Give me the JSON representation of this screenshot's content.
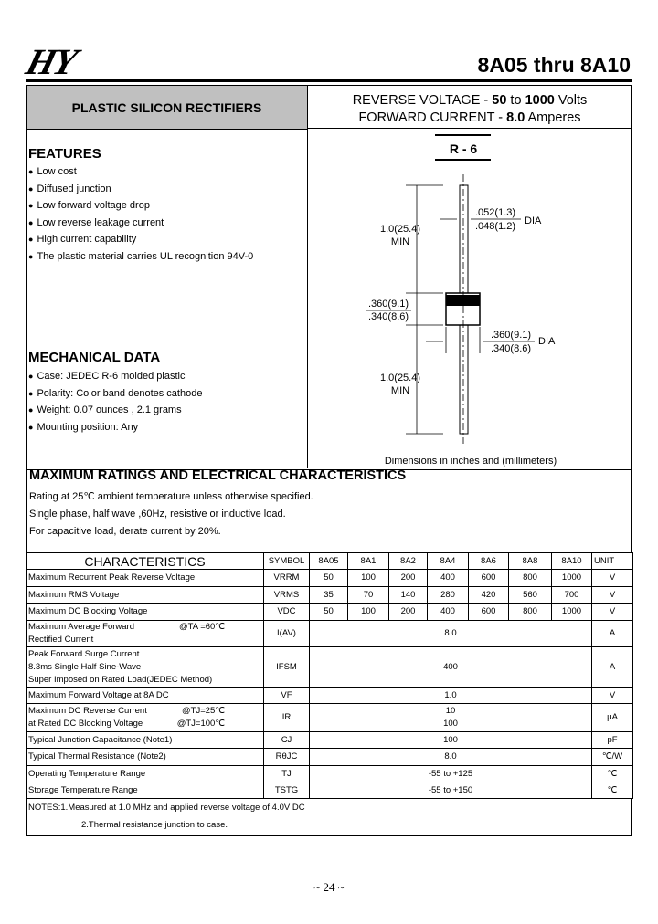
{
  "header": {
    "logo": "HY",
    "title": "8A05 thru 8A10"
  },
  "banner": {
    "left": "PLASTIC SILICON RECTIFIERS",
    "rv_label": "REVERSE VOLTAGE  - ",
    "rv_min": "50",
    "rv_to": " to ",
    "rv_max": "1000",
    "rv_unit": " Volts",
    "fc_label": "FORWARD CURRENT - ",
    "fc_val": "8.0",
    "fc_unit": " Amperes"
  },
  "features": {
    "title": "FEATURES",
    "items": [
      "Low cost",
      "Diffused junction",
      "Low forward voltage drop",
      "Low reverse leakage current",
      "High current capability",
      "The plastic material carries UL recognition 94V-0"
    ]
  },
  "mechanical": {
    "title": "MECHANICAL DATA",
    "items": [
      "Case: JEDEC R-6 molded plastic",
      "Polarity:  Color band denotes cathode",
      "Weight:  0.07 ounces , 2.1 grams",
      "Mounting position: Any"
    ]
  },
  "diagram": {
    "package": "R - 6",
    "lead_len": "1.0(25.4)",
    "min": "MIN",
    "lead_dia_max": ".052(1.3)",
    "lead_dia_min": ".048(1.2)",
    "dia": "DIA",
    "body_len_max": ".360(9.1)",
    "body_len_min": ".340(8.6)",
    "body_dia_max": ".360(9.1)",
    "body_dia_min": ".340(8.6)",
    "caption": "Dimensions in inches and (millimeters)"
  },
  "ratings": {
    "title": "MAXIMUM RATINGS AND ELECTRICAL CHARACTERISTICS",
    "lines": [
      "Rating at 25℃ ambient temperature unless otherwise specified.",
      "Single phase, half wave ,60Hz, resistive or inductive load.",
      "For capacitive load, derate current by 20%."
    ]
  },
  "table": {
    "headers": [
      "CHARACTERISTICS",
      "SYMBOL",
      "8A05",
      "8A1",
      "8A2",
      "8A4",
      "8A6",
      "8A8",
      "8A10",
      "UNIT"
    ],
    "rows": [
      {
        "name": "Maximum Recurrent Peak Reverse Voltage",
        "symbol": "VRRM",
        "values": [
          "50",
          "100",
          "200",
          "400",
          "600",
          "800",
          "1000"
        ],
        "unit": "V"
      },
      {
        "name": "Maximum RMS Voltage",
        "symbol": "VRMS",
        "values": [
          "35",
          "70",
          "140",
          "280",
          "420",
          "560",
          "700"
        ],
        "unit": "V"
      },
      {
        "name": "Maximum DC Blocking Voltage",
        "symbol": "VDC",
        "values": [
          "50",
          "100",
          "200",
          "400",
          "600",
          "800",
          "1000"
        ],
        "unit": "V"
      },
      {
        "name": "Maximum Average Forward",
        "name2": "Rectified Current",
        "cond": "@TA =60℃",
        "symbol": "I(AV)",
        "value": "8.0",
        "unit": "A"
      },
      {
        "name": "Peak Forward Surge Current",
        "name2": "8.3ms Single Half Sine-Wave",
        "name3": "Super Imposed on Rated Load(JEDEC Method)",
        "symbol": "IFSM",
        "value": "400",
        "unit": "A"
      },
      {
        "name": "Maximum Forward Voltage at 8A DC",
        "symbol": "VF",
        "value": "1.0",
        "unit": "V"
      },
      {
        "name": "Maximum DC Reverse Current",
        "cond": "@TJ=25℃",
        "name2": " at Rated DC Blocking Voltage",
        "cond2": "@TJ=100℃",
        "symbol": "IR",
        "value": "10",
        "value2": "100",
        "unit": "μA"
      },
      {
        "name": "Typical Junction  Capacitance (Note1)",
        "symbol": "CJ",
        "value": "100",
        "unit": "pF"
      },
      {
        "name": "Typical Thermal Resistance (Note2)",
        "symbol": "RθJC",
        "value": "8.0",
        "unit": "℃/W"
      },
      {
        "name": "Operating Temperature Range",
        "symbol": "TJ",
        "value": "-55 to +125",
        "unit": "℃"
      },
      {
        "name": "Storage Temperature Range",
        "symbol": "TSTG",
        "value": "-55 to +150",
        "unit": "℃"
      }
    ]
  },
  "notes": [
    "NOTES:1.Measured at 1.0 MHz and applied reverse voltage of 4.0V DC",
    "2.Thermal resistance junction to case."
  ],
  "page_number": "~ 24 ~"
}
